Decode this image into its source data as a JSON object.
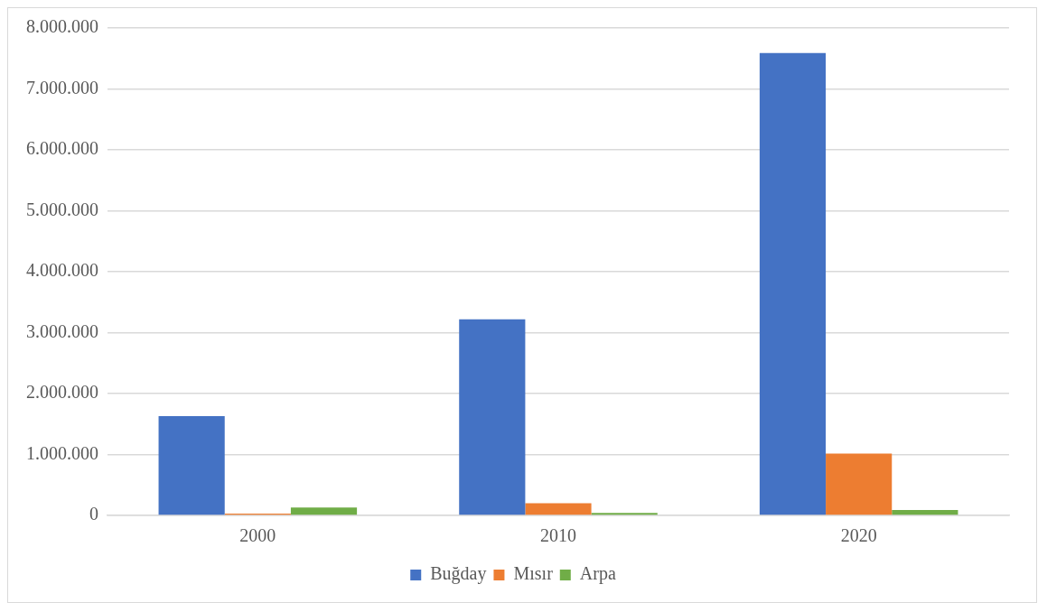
{
  "chart_data": {
    "type": "bar",
    "categories": [
      "2000",
      "2010",
      "2020"
    ],
    "series": [
      {
        "name": "Buğday",
        "color": "#4472c4",
        "values": [
          1630000,
          3220000,
          7590000
        ]
      },
      {
        "name": "Mısır",
        "color": "#ed7d31",
        "values": [
          30000,
          200000,
          1015000
        ]
      },
      {
        "name": "Arpa",
        "color": "#70ad47",
        "values": [
          130000,
          40000,
          90000
        ]
      }
    ],
    "ylim": [
      0,
      8000000
    ],
    "yticks": [
      {
        "value": 0,
        "label": "0"
      },
      {
        "value": 1000000,
        "label": "1.000.000"
      },
      {
        "value": 2000000,
        "label": "2.000.000"
      },
      {
        "value": 3000000,
        "label": "3.000.000"
      },
      {
        "value": 4000000,
        "label": "4.000.000"
      },
      {
        "value": 5000000,
        "label": "5.000.000"
      },
      {
        "value": 6000000,
        "label": "6.000.000"
      },
      {
        "value": 7000000,
        "label": "7.000.000"
      },
      {
        "value": 8000000,
        "label": "8.000.000"
      }
    ],
    "grid": "y",
    "legend": "bottom"
  }
}
